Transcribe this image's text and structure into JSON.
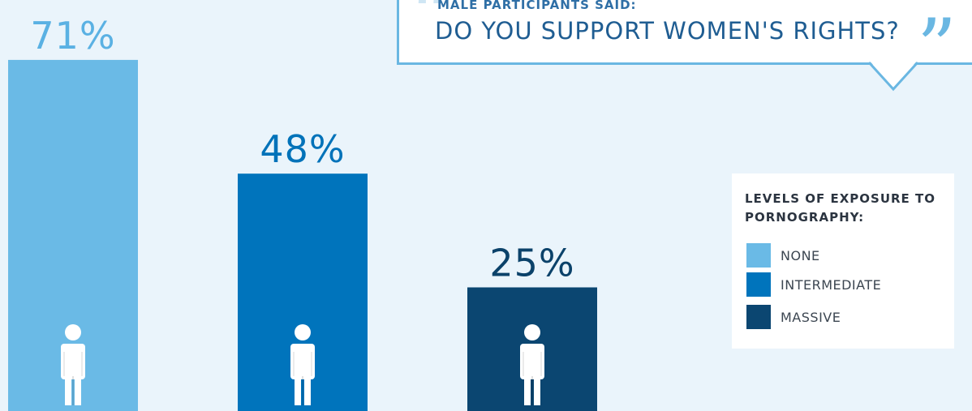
{
  "quote": {
    "label": "Male participants said:",
    "question": "Do you support women's rights?"
  },
  "legend": {
    "title": "Levels of exposure to pornography:",
    "items": [
      {
        "label": "None",
        "color": "#6abae6"
      },
      {
        "label": "Intermediate",
        "color": "#0074bc"
      },
      {
        "label": "Massive",
        "color": "#0b4671"
      }
    ]
  },
  "chart_data": {
    "type": "bar",
    "categories": [
      "None",
      "Intermediate",
      "Massive"
    ],
    "values": [
      71,
      48,
      25
    ],
    "value_labels": [
      "71%",
      "48%",
      "25%"
    ],
    "unit": "%",
    "colors": [
      "#6abae6",
      "#0074bc",
      "#0b4671"
    ],
    "label_colors": [
      "#5ab1e3",
      "#0072b9",
      "#0b426a"
    ],
    "ylim": [
      0,
      100
    ],
    "grid": false,
    "legend_position": "right",
    "icon": "person-icon"
  }
}
